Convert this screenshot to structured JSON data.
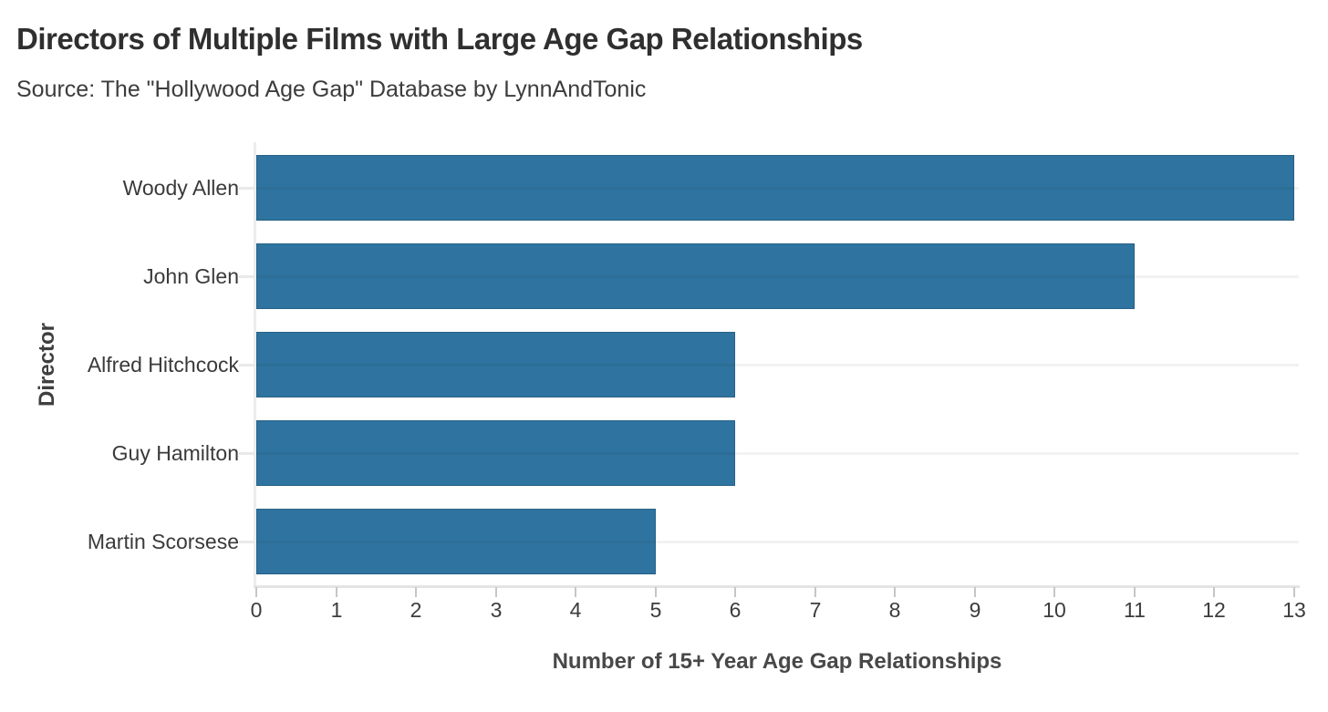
{
  "header": {
    "title": "Directors of Multiple Films with Large Age Gap Relationships",
    "subtitle": "Source: The \"Hollywood Age Gap\" Database by LynnAndTonic"
  },
  "chart_data": {
    "type": "bar",
    "orientation": "horizontal",
    "title": "Directors of Multiple Films with Large Age Gap Relationships",
    "subtitle": "Source: The \"Hollywood Age Gap\" Database by LynnAndTonic",
    "categories": [
      "Woody Allen",
      "John Glen",
      "Alfred Hitchcock",
      "Guy Hamilton",
      "Martin Scorsese"
    ],
    "values": [
      13,
      11,
      6,
      6,
      5
    ],
    "xlabel": "Number of 15+ Year Age Gap Relationships",
    "ylabel": "Director",
    "xlim": [
      0,
      13
    ],
    "xticks": [
      0,
      1,
      2,
      3,
      4,
      5,
      6,
      7,
      8,
      9,
      10,
      11,
      12,
      13
    ],
    "grid": "horizontal-row-lines",
    "legend": false,
    "bar_color": "#2f74a0"
  },
  "colors": {
    "bar": "#2f74a0",
    "axis_line": "#e7e7e7",
    "tick_mark": "#c6c6c6",
    "title_text": "#2f2f2f",
    "subtitle_text": "#3c3c3c",
    "label_text": "#3a3a3a",
    "background": "#ffffff"
  }
}
